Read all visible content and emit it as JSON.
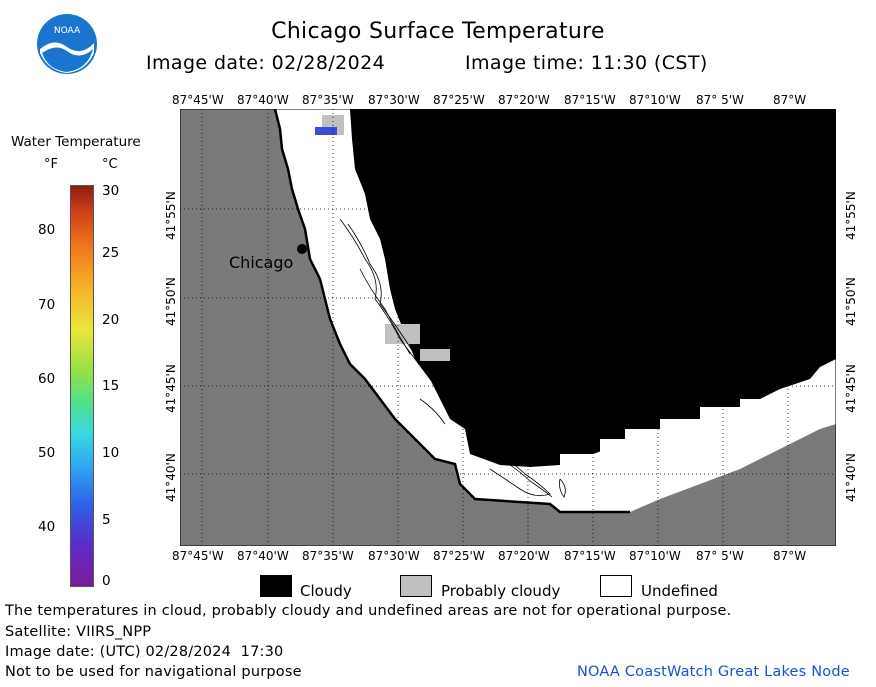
{
  "header": {
    "title": "Chicago Surface Temperature",
    "image_date": "Image date: 02/28/2024",
    "image_time": "Image time: 11:30 (CST)"
  },
  "logo": {
    "text": "NOAA",
    "color": "#1a75d1"
  },
  "colorbar": {
    "title": "Water Temperature",
    "unit_f": "°F",
    "unit_c": "°C",
    "f_ticks": [
      "80",
      "70",
      "60",
      "50",
      "40"
    ],
    "c_ticks": [
      "30",
      "25",
      "20",
      "15",
      "10",
      "5",
      "0"
    ]
  },
  "map": {
    "city_label": "Chicago",
    "lon_labels": [
      "87°45'W",
      "87°40'W",
      "87°35'W",
      "87°30'W",
      "87°25'W",
      "87°20'W",
      "87°15'W",
      "87°10'W",
      "87° 5'W",
      "87°W"
    ],
    "lat_labels": [
      "41°55'N",
      "41°50'N",
      "41°45'N",
      "41°40'N"
    ],
    "colors": {
      "land": "#7a7a7a",
      "cloudy": "#000000",
      "probably_cloudy": "#c0c0c0",
      "undefined": "#ffffff",
      "water_cold": "#3a4fd8"
    }
  },
  "legend": {
    "cloudy": "Cloudy",
    "probably_cloudy": "Probably cloudy",
    "undefined": "Undefined"
  },
  "footer": {
    "disclaimer": "The temperatures in cloud, probably cloudy and undefined areas are not for operational purpose.",
    "satellite": "Satellite: VIIRS_NPP",
    "utc_date": "Image date: (UTC) 02/28/2024  17:30",
    "nav_warning": "Not to be used for navigational purpose",
    "credit": "NOAA CoastWatch Great Lakes Node"
  }
}
